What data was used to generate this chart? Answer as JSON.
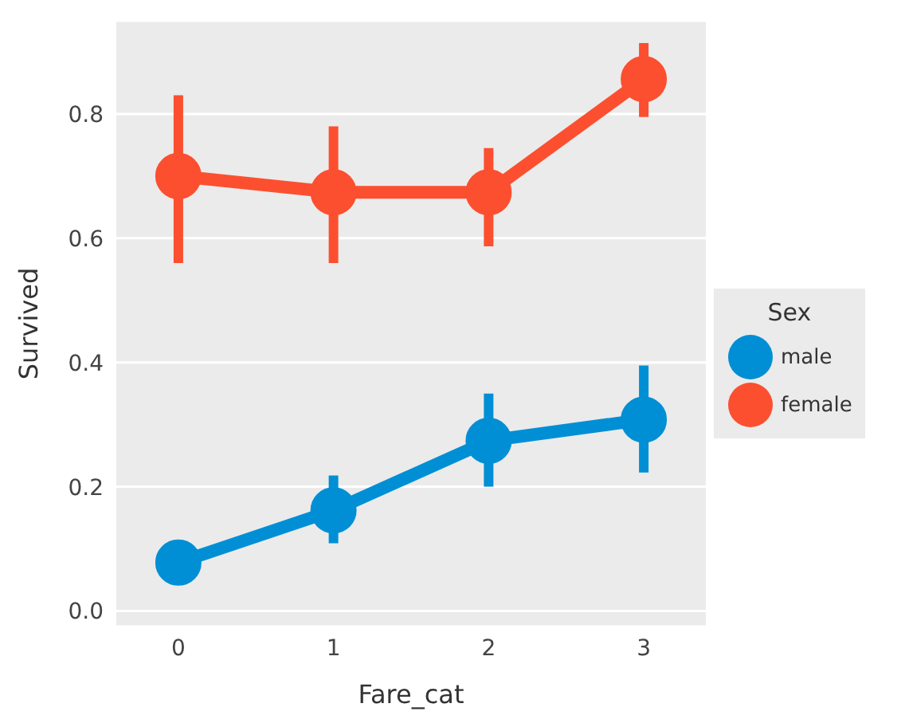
{
  "chart_data": {
    "type": "line",
    "xlabel": "Fare_cat",
    "ylabel": "Survived",
    "legend_title": "Sex",
    "categories": [
      "0",
      "1",
      "2",
      "3"
    ],
    "series": [
      {
        "name": "male",
        "color": "#008fd5",
        "values": [
          0.078,
          0.162,
          0.274,
          0.308
        ],
        "errors": [
          null,
          [
            0.109,
            0.218
          ],
          [
            0.2,
            0.35
          ],
          [
            0.223,
            0.395
          ]
        ]
      },
      {
        "name": "female",
        "color": "#fc4f30",
        "values": [
          0.7,
          0.674,
          0.674,
          0.856
        ],
        "errors": [
          [
            0.56,
            0.83
          ],
          [
            0.56,
            0.78
          ],
          [
            0.587,
            0.745
          ],
          [
            0.795,
            0.914
          ]
        ]
      }
    ],
    "ylim": [
      -0.025,
      0.95
    ],
    "yticks": [
      {
        "value": 0,
        "label": "0.0"
      },
      {
        "value": 0.2,
        "label": "0.2"
      },
      {
        "value": 0.4,
        "label": "0.4"
      },
      {
        "value": 0.6,
        "label": "0.6"
      },
      {
        "value": 0.8,
        "label": "0.8"
      }
    ],
    "grid": "y",
    "legend": "right",
    "marker": "circle",
    "line_style": "solid"
  }
}
